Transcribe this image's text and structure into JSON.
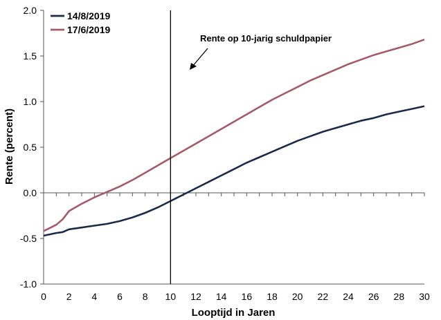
{
  "chart_data": {
    "type": "line",
    "title": "",
    "xlabel": "Looptijd in Jaren",
    "ylabel": "Rente (percent)",
    "xlim": [
      0,
      30
    ],
    "ylim": [
      -1.0,
      2.0
    ],
    "xticks": [
      0,
      2,
      4,
      6,
      8,
      10,
      12,
      14,
      16,
      18,
      20,
      22,
      24,
      26,
      28,
      30
    ],
    "yticks": [
      -1.0,
      -0.5,
      0.0,
      0.5,
      1.0,
      1.5,
      2.0
    ],
    "ytick_labels": [
      "-1.0",
      "-0.5",
      "0.0",
      "0.5",
      "1.0",
      "1.5",
      "2.0"
    ],
    "xtick_labels": [
      "0",
      "2",
      "4",
      "6",
      "8",
      "10",
      "12",
      "14",
      "16",
      "18",
      "20",
      "22",
      "24",
      "26",
      "28",
      "30"
    ],
    "grid": false,
    "legend": "top-left",
    "series": [
      {
        "name": "14/8/2019",
        "color": "#1b2a49",
        "points": [
          [
            0,
            -0.47
          ],
          [
            1,
            -0.44
          ],
          [
            1.5,
            -0.43
          ],
          [
            2,
            -0.4
          ],
          [
            3,
            -0.38
          ],
          [
            4,
            -0.36
          ],
          [
            5,
            -0.34
          ],
          [
            6,
            -0.31
          ],
          [
            7,
            -0.27
          ],
          [
            8,
            -0.22
          ],
          [
            9,
            -0.16
          ],
          [
            10,
            -0.09
          ],
          [
            11,
            -0.02
          ],
          [
            12,
            0.05
          ],
          [
            13,
            0.12
          ],
          [
            14,
            0.19
          ],
          [
            15,
            0.26
          ],
          [
            16,
            0.33
          ],
          [
            17,
            0.39
          ],
          [
            18,
            0.45
          ],
          [
            19,
            0.51
          ],
          [
            20,
            0.57
          ],
          [
            21,
            0.62
          ],
          [
            22,
            0.67
          ],
          [
            23,
            0.71
          ],
          [
            24,
            0.75
          ],
          [
            25,
            0.79
          ],
          [
            26,
            0.82
          ],
          [
            27,
            0.86
          ],
          [
            28,
            0.89
          ],
          [
            29,
            0.92
          ],
          [
            30,
            0.95
          ]
        ]
      },
      {
        "name": "17/6/2019",
        "color": "#a45a6a",
        "points": [
          [
            0,
            -0.42
          ],
          [
            1,
            -0.35
          ],
          [
            1.5,
            -0.29
          ],
          [
            2,
            -0.2
          ],
          [
            3,
            -0.12
          ],
          [
            4,
            -0.05
          ],
          [
            5,
            0.01
          ],
          [
            6,
            0.07
          ],
          [
            7,
            0.14
          ],
          [
            8,
            0.22
          ],
          [
            9,
            0.3
          ],
          [
            10,
            0.38
          ],
          [
            11,
            0.46
          ],
          [
            12,
            0.54
          ],
          [
            13,
            0.62
          ],
          [
            14,
            0.7
          ],
          [
            15,
            0.78
          ],
          [
            16,
            0.86
          ],
          [
            17,
            0.94
          ],
          [
            18,
            1.02
          ],
          [
            19,
            1.09
          ],
          [
            20,
            1.16
          ],
          [
            21,
            1.23
          ],
          [
            22,
            1.29
          ],
          [
            23,
            1.35
          ],
          [
            24,
            1.41
          ],
          [
            25,
            1.46
          ],
          [
            26,
            1.51
          ],
          [
            27,
            1.55
          ],
          [
            28,
            1.59
          ],
          [
            29,
            1.63
          ],
          [
            30,
            1.68
          ]
        ]
      }
    ],
    "reference_line": {
      "x": 10
    },
    "annotations": [
      {
        "text": "Rente op 10-jarig schuldpapier"
      }
    ]
  }
}
